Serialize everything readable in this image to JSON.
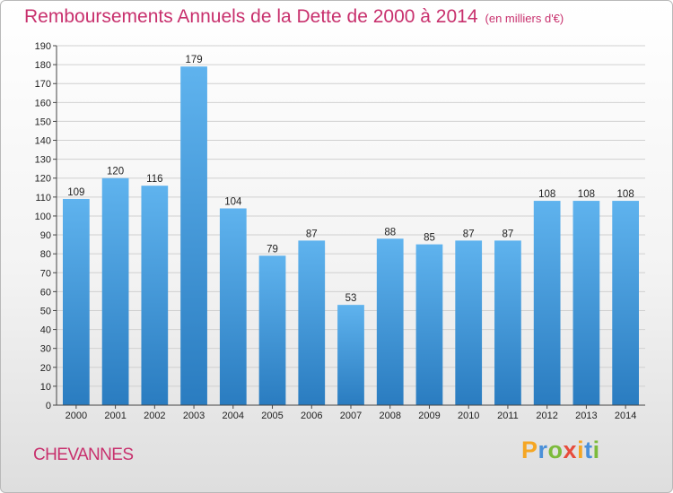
{
  "title": "Remboursements Annuels de la Dette de 2000 à 2014",
  "subtitle": "(en milliers d'€)",
  "commune": "CHEVANNES",
  "brand": {
    "letters": [
      "P",
      "r",
      "o",
      "x",
      "i",
      "t",
      "i"
    ],
    "colors": [
      "#f5a623",
      "#4a90d9",
      "#7cbb3b",
      "#e74c3c",
      "#f5a623",
      "#4a90d9",
      "#7cbb3b"
    ]
  },
  "colors": {
    "title": "#c8306d",
    "bar_light": "#5fb3ee",
    "bar_dark": "#2a7cc0",
    "grid": "#d0d0d0",
    "axis": "#444444",
    "text": "#222222"
  },
  "chart_data": {
    "type": "bar",
    "title": "Remboursements Annuels de la Dette de 2000 à 2014 (en milliers d'€)",
    "categories": [
      "2000",
      "2001",
      "2002",
      "2003",
      "2004",
      "2005",
      "2006",
      "2007",
      "2008",
      "2009",
      "2010",
      "2011",
      "2012",
      "2013",
      "2014"
    ],
    "values": [
      109,
      120,
      116,
      179,
      104,
      79,
      87,
      53,
      88,
      85,
      87,
      87,
      108,
      108,
      108
    ],
    "ylim": [
      0,
      190
    ],
    "yticks": [
      0,
      10,
      20,
      30,
      40,
      50,
      60,
      70,
      80,
      90,
      100,
      110,
      120,
      130,
      140,
      150,
      160,
      170,
      180,
      190
    ],
    "xlabel": "",
    "ylabel": "",
    "grid": true
  }
}
